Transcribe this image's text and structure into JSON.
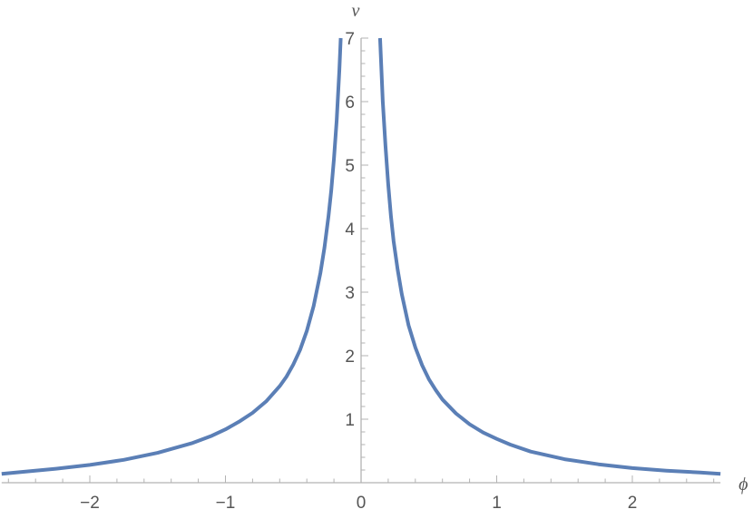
{
  "chart_data": {
    "type": "line",
    "title": "",
    "xlabel": "ϕ",
    "ylabel": "v",
    "xlim": [
      -2.65,
      2.65
    ],
    "ylim": [
      0,
      7
    ],
    "x_ticks": [
      {
        "value": -2,
        "label": "−2"
      },
      {
        "value": -1,
        "label": "−1"
      },
      {
        "value": 0,
        "label": "0"
      },
      {
        "value": 1,
        "label": "1"
      },
      {
        "value": 2,
        "label": "2"
      }
    ],
    "y_ticks": [
      {
        "value": 1,
        "label": "1"
      },
      {
        "value": 2,
        "label": "2"
      },
      {
        "value": 3,
        "label": "3"
      },
      {
        "value": 4,
        "label": "4"
      },
      {
        "value": 5,
        "label": "5"
      },
      {
        "value": 6,
        "label": "6"
      },
      {
        "value": 7,
        "label": "7"
      }
    ],
    "grid": false,
    "legend": "none",
    "series": [
      {
        "color": "#5b7fb6",
        "branches": [
          {
            "x": [
              -2.65,
              -2.5,
              -2.25,
              -2.0,
              -1.75,
              -1.5,
              -1.25,
              -1.1,
              -1.0,
              -0.9,
              -0.8,
              -0.7,
              -0.6,
              -0.55,
              -0.5,
              -0.45,
              -0.4,
              -0.35,
              -0.3,
              -0.27,
              -0.24,
              -0.22,
              -0.2,
              -0.18,
              -0.16,
              -0.15
            ],
            "y": [
              0.14,
              0.17,
              0.22,
              0.28,
              0.36,
              0.47,
              0.62,
              0.74,
              0.84,
              0.96,
              1.1,
              1.28,
              1.52,
              1.67,
              1.86,
              2.09,
              2.39,
              2.78,
              3.3,
              3.7,
              4.2,
              4.6,
              5.1,
              5.7,
              6.5,
              7.0
            ]
          },
          {
            "x": [
              0.14,
              0.15,
              0.16,
              0.18,
              0.2,
              0.22,
              0.24,
              0.27,
              0.3,
              0.35,
              0.4,
              0.45,
              0.5,
              0.55,
              0.6,
              0.7,
              0.8,
              0.9,
              1.0,
              1.1,
              1.25,
              1.5,
              1.75,
              2.0,
              2.25,
              2.5,
              2.65
            ],
            "y": [
              7.0,
              6.5,
              6.0,
              5.3,
              4.7,
              4.2,
              3.8,
              3.35,
              2.97,
              2.48,
              2.13,
              1.85,
              1.63,
              1.46,
              1.31,
              1.09,
              0.92,
              0.79,
              0.69,
              0.6,
              0.49,
              0.37,
              0.29,
              0.23,
              0.19,
              0.16,
              0.14
            ]
          }
        ]
      }
    ]
  }
}
